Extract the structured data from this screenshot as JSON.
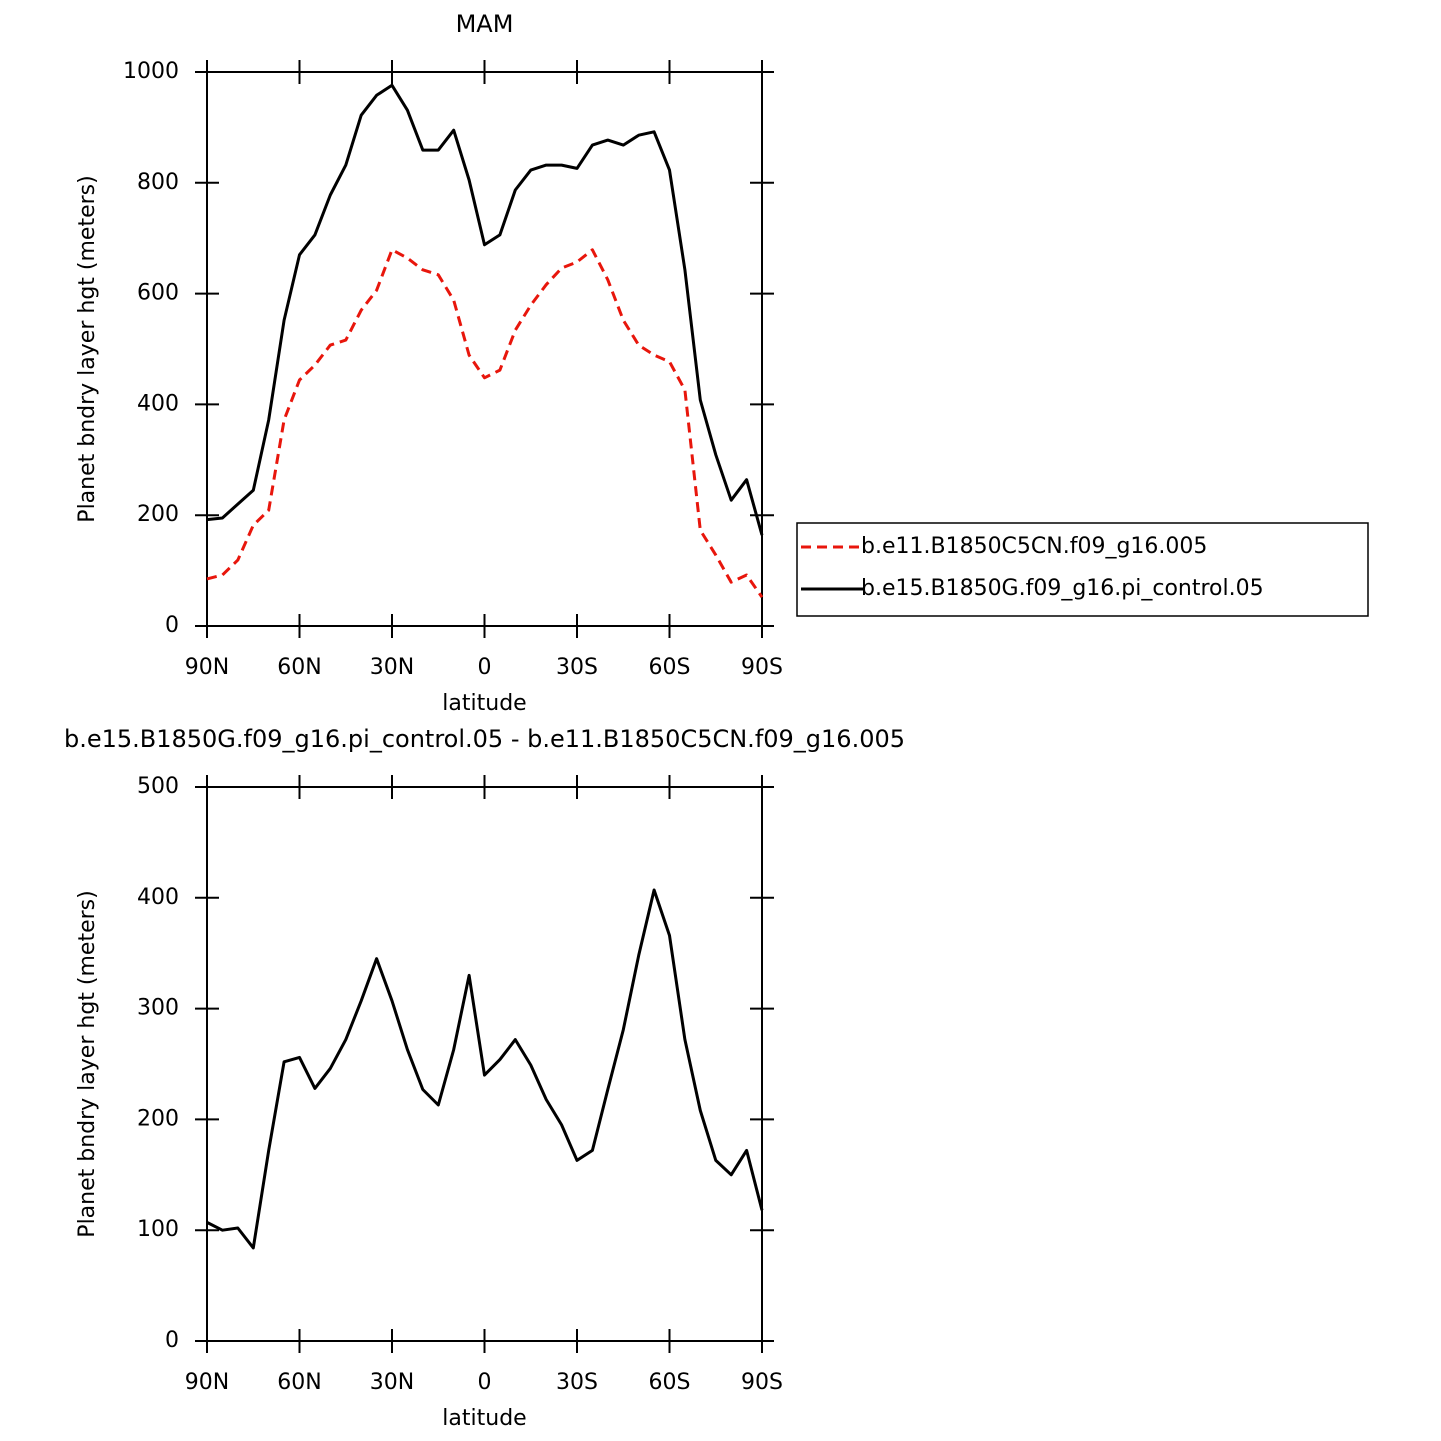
{
  "chart_data": [
    {
      "type": "line",
      "title": "MAM",
      "xlabel": "latitude",
      "ylabel": "Planet bndry layer hgt (meters)",
      "x": [
        90,
        85,
        80,
        75,
        70,
        65,
        60,
        55,
        50,
        45,
        40,
        35,
        30,
        25,
        20,
        15,
        10,
        5,
        0,
        -5,
        -10,
        -15,
        -20,
        -25,
        -30,
        -35,
        -40,
        -45,
        -50,
        -55,
        -60,
        -65,
        -70,
        -75,
        -80,
        -85,
        -90
      ],
      "series": [
        {
          "name": "b.e11.B1850C5CN.f09_g16.005",
          "color": "#e8160c",
          "dash": "dashed",
          "values": [
            85,
            92,
            119,
            182,
            209,
            372,
            444,
            471,
            507,
            516,
            570,
            606,
            679,
            664,
            643,
            634,
            588,
            489,
            448,
            462,
            534,
            579,
            616,
            646,
            657,
            679,
            625,
            552,
            507,
            489,
            477,
            426,
            173,
            128,
            79,
            92,
            52
          ]
        },
        {
          "name": "b.e15.B1850G.f09_g16.pi_control.05",
          "color": "#000000",
          "dash": "solid",
          "values": [
            192,
            195,
            220,
            245,
            372,
            552,
            670,
            706,
            778,
            832,
            922,
            958,
            976,
            931,
            859,
            859,
            895,
            805,
            688,
            706,
            787,
            823,
            832,
            832,
            826,
            868,
            877,
            868,
            886,
            892,
            823,
            643,
            408,
            309,
            227,
            264,
            164
          ]
        }
      ],
      "xlim": [
        90,
        -90
      ],
      "xticks": [
        {
          "value": 90,
          "label": "90N"
        },
        {
          "value": 60,
          "label": "60N"
        },
        {
          "value": 30,
          "label": "30N"
        },
        0,
        {
          "value": -30,
          "label": "30S"
        },
        {
          "value": -60,
          "label": "60S"
        },
        {
          "value": -90,
          "label": "90S"
        }
      ],
      "ylim": [
        0,
        1000
      ],
      "yticks": [
        0,
        200,
        400,
        600,
        800,
        1000
      ],
      "legend": "right"
    },
    {
      "type": "line",
      "title": "b.e15.B1850G.f09_g16.pi_control.05 - b.e11.B1850C5CN.f09_g16.005",
      "xlabel": "latitude",
      "ylabel": "Planet bndry layer hgt (meters)",
      "x": [
        90,
        85,
        80,
        75,
        70,
        65,
        60,
        55,
        50,
        45,
        40,
        35,
        30,
        25,
        20,
        15,
        10,
        5,
        0,
        -5,
        -10,
        -15,
        -20,
        -25,
        -30,
        -35,
        -40,
        -45,
        -50,
        -55,
        -60,
        -65,
        -70,
        -75,
        -80,
        -85,
        -90
      ],
      "color": "#000000",
      "values": [
        107,
        100,
        102,
        84,
        172,
        252,
        256,
        228,
        246,
        272,
        307,
        345,
        307,
        263,
        227,
        213,
        263,
        330,
        240,
        254,
        272,
        249,
        218,
        195,
        163,
        172,
        227,
        281,
        348,
        407,
        366,
        272,
        208,
        163,
        150,
        172,
        118
      ],
      "xlim": [
        90,
        -90
      ],
      "xticks": [
        {
          "value": 90,
          "label": "90N"
        },
        {
          "value": 60,
          "label": "60N"
        },
        {
          "value": 30,
          "label": "30N"
        },
        0,
        {
          "value": -30,
          "label": "30S"
        },
        {
          "value": -60,
          "label": "60S"
        },
        {
          "value": -90,
          "label": "90S"
        }
      ],
      "ylim": [
        0,
        500
      ],
      "yticks": [
        0,
        100,
        200,
        300,
        400,
        500
      ]
    }
  ]
}
